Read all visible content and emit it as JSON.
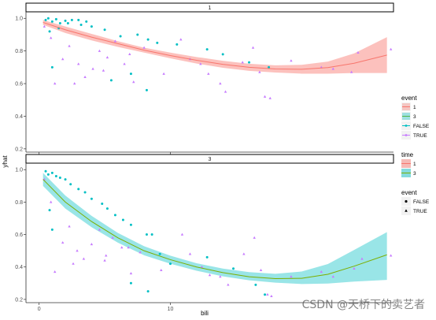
{
  "watermark": "CSDN @天桥下的卖艺者",
  "chart_data": {
    "type": "scatter",
    "xlabel": "bili",
    "ylabel": "yhat",
    "xlim": [
      -1,
      27
    ],
    "x_ticks": [
      0,
      10
    ],
    "ylim": [
      0.18,
      1.04
    ],
    "y_ticks": [
      0.2,
      0.4,
      0.6,
      0.8,
      1.0
    ],
    "grid": false,
    "legend_position": "right",
    "colors": {
      "t1": "#f8766d",
      "t3": "#00bfc4",
      "t3_line": "#7cae00",
      "event_true": "#c77cff",
      "event_false": "#00bfc4"
    },
    "panels": [
      {
        "strip": "1",
        "curve": {
          "x": [
            0.3,
            2,
            4,
            6,
            8,
            10,
            12,
            14,
            16,
            18,
            20,
            22,
            24,
            26.5
          ],
          "y": [
            0.975,
            0.93,
            0.885,
            0.845,
            0.805,
            0.772,
            0.743,
            0.718,
            0.7,
            0.69,
            0.688,
            0.698,
            0.725,
            0.775
          ]
        },
        "band_upper": [
          0.99,
          0.95,
          0.905,
          0.86,
          0.82,
          0.79,
          0.763,
          0.74,
          0.722,
          0.712,
          0.715,
          0.735,
          0.785,
          0.885
        ],
        "band_lower": [
          0.96,
          0.91,
          0.865,
          0.825,
          0.79,
          0.755,
          0.723,
          0.697,
          0.678,
          0.668,
          0.661,
          0.661,
          0.665,
          0.665
        ],
        "points_false": [
          [
            0.5,
            0.99
          ],
          [
            0.7,
            1.0
          ],
          [
            1,
            0.98
          ],
          [
            1.3,
            0.995
          ],
          [
            1.6,
            0.97
          ],
          [
            2,
            0.985
          ],
          [
            2.5,
            0.99
          ],
          [
            3.2,
            0.96
          ],
          [
            4,
            0.95
          ],
          [
            5,
            0.93
          ],
          [
            6.2,
            0.89
          ],
          [
            7.5,
            0.9
          ],
          [
            8.3,
            0.87
          ],
          [
            9,
            0.85
          ],
          [
            10.5,
            0.84
          ],
          [
            12.8,
            0.81
          ],
          [
            14,
            0.78
          ],
          [
            16,
            0.73
          ],
          [
            17.5,
            0.7
          ],
          [
            8.2,
            0.56
          ],
          [
            5.5,
            0.62
          ],
          [
            7,
            0.66
          ],
          [
            1,
            0.7
          ],
          [
            0.8,
            0.92
          ],
          [
            1.5,
            0.94
          ],
          [
            2.2,
            0.97
          ],
          [
            3,
            0.99
          ],
          [
            3.6,
            0.98
          ]
        ],
        "points_true": [
          [
            0.4,
            0.95
          ],
          [
            0.9,
            0.88
          ],
          [
            1.2,
            0.6
          ],
          [
            1.8,
            0.75
          ],
          [
            2.3,
            0.83
          ],
          [
            3,
            0.72
          ],
          [
            3.5,
            0.64
          ],
          [
            4.1,
            0.69
          ],
          [
            4.6,
            0.8
          ],
          [
            5.2,
            0.76
          ],
          [
            5.8,
            0.86
          ],
          [
            6.5,
            0.72
          ],
          [
            7.2,
            0.61
          ],
          [
            8,
            0.82
          ],
          [
            9.5,
            0.66
          ],
          [
            10.8,
            0.87
          ],
          [
            11.5,
            0.75
          ],
          [
            12.3,
            0.72
          ],
          [
            12.9,
            0.66
          ],
          [
            13.8,
            0.6
          ],
          [
            14.2,
            0.55
          ],
          [
            15.5,
            0.73
          ],
          [
            16.3,
            0.82
          ],
          [
            16.8,
            0.67
          ],
          [
            17.2,
            0.52
          ],
          [
            17.6,
            0.51
          ],
          [
            19.2,
            0.74
          ],
          [
            21.5,
            0.7
          ],
          [
            22.4,
            0.69
          ],
          [
            23.8,
            0.67
          ],
          [
            24.3,
            0.79
          ],
          [
            26.8,
            0.81
          ],
          [
            2.7,
            0.6
          ],
          [
            4.9,
            0.68
          ],
          [
            6.9,
            0.78
          ]
        ]
      },
      {
        "strip": "3",
        "curve": {
          "x": [
            0.3,
            2,
            4,
            6,
            8,
            10,
            12,
            14,
            16,
            18,
            20,
            22,
            24,
            26.5
          ],
          "y": [
            0.94,
            0.8,
            0.68,
            0.58,
            0.5,
            0.445,
            0.4,
            0.365,
            0.34,
            0.328,
            0.33,
            0.355,
            0.405,
            0.475
          ]
        },
        "band_upper": [
          0.98,
          0.84,
          0.715,
          0.61,
          0.528,
          0.47,
          0.423,
          0.39,
          0.368,
          0.358,
          0.372,
          0.418,
          0.505,
          0.615
        ],
        "band_lower": [
          0.9,
          0.76,
          0.645,
          0.55,
          0.472,
          0.42,
          0.377,
          0.342,
          0.318,
          0.303,
          0.295,
          0.298,
          0.31,
          0.32
        ],
        "points_false": [
          [
            0.5,
            0.99
          ],
          [
            0.7,
            0.97
          ],
          [
            1,
            0.98
          ],
          [
            1.3,
            0.96
          ],
          [
            1.6,
            0.95
          ],
          [
            2,
            0.94
          ],
          [
            2.4,
            0.91
          ],
          [
            3,
            0.88
          ],
          [
            3.5,
            0.86
          ],
          [
            4,
            0.82
          ],
          [
            4.8,
            0.79
          ],
          [
            5.2,
            0.76
          ],
          [
            5.8,
            0.72
          ],
          [
            6.4,
            0.69
          ],
          [
            7,
            0.66
          ],
          [
            8.2,
            0.6
          ],
          [
            8.6,
            0.6
          ],
          [
            9.2,
            0.48
          ],
          [
            10,
            0.42
          ],
          [
            12.8,
            0.46
          ],
          [
            14.8,
            0.39
          ],
          [
            16.5,
            0.29
          ],
          [
            17.2,
            0.23
          ],
          [
            8.3,
            0.25
          ],
          [
            7,
            0.3
          ],
          [
            1,
            0.63
          ],
          [
            0.8,
            0.75
          ]
        ],
        "points_true": [
          [
            0.4,
            0.94
          ],
          [
            0.9,
            0.8
          ],
          [
            1.2,
            0.37
          ],
          [
            1.8,
            0.55
          ],
          [
            2.3,
            0.65
          ],
          [
            2.9,
            0.5
          ],
          [
            3.4,
            0.45
          ],
          [
            4,
            0.54
          ],
          [
            4.6,
            0.63
          ],
          [
            5.1,
            0.47
          ],
          [
            5.6,
            0.58
          ],
          [
            6.3,
            0.52
          ],
          [
            7,
            0.36
          ],
          [
            7.7,
            0.49
          ],
          [
            9.3,
            0.38
          ],
          [
            10.9,
            0.6
          ],
          [
            11.5,
            0.48
          ],
          [
            12.4,
            0.4
          ],
          [
            13,
            0.35
          ],
          [
            13.8,
            0.34
          ],
          [
            14.4,
            0.29
          ],
          [
            15.6,
            0.48
          ],
          [
            16.4,
            0.58
          ],
          [
            16.9,
            0.38
          ],
          [
            17.4,
            0.23
          ],
          [
            17.7,
            0.22
          ],
          [
            19.2,
            0.34
          ],
          [
            21.5,
            0.37
          ],
          [
            22.4,
            0.34
          ],
          [
            24,
            0.39
          ],
          [
            24.6,
            0.45
          ],
          [
            26.8,
            0.47
          ],
          [
            2.6,
            0.42
          ],
          [
            5,
            0.44
          ],
          [
            6.8,
            0.52
          ]
        ]
      }
    ],
    "legends": [
      {
        "title": "event",
        "items": [
          "1",
          "3",
          "FALSE",
          "TRUE"
        ]
      },
      {
        "title": "time",
        "items": [
          "1",
          "3"
        ]
      },
      {
        "title": "event",
        "items": [
          "FALSE",
          "TRUE"
        ]
      }
    ]
  }
}
